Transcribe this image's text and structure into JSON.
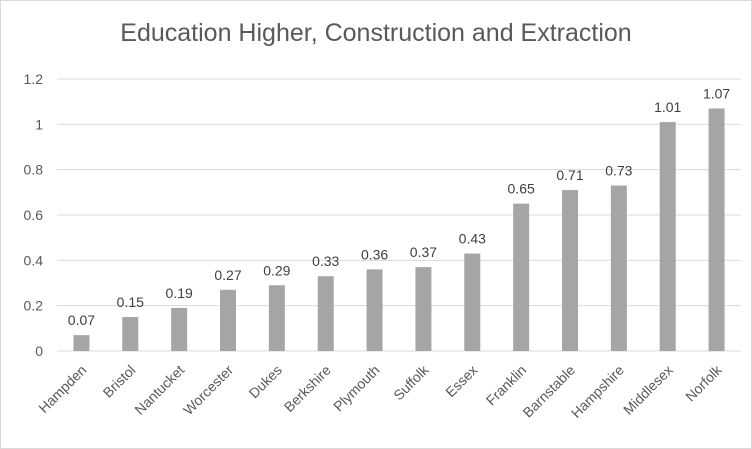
{
  "chart_data": {
    "type": "bar",
    "title": "Education Higher, Construction and Extraction",
    "categories": [
      "Hampden",
      "Bristol",
      "Nantucket",
      "Worcester",
      "Dukes",
      "Berkshire",
      "Plymouth",
      "Suffolk",
      "Essex",
      "Franklin",
      "Barnstable",
      "Hampshire",
      "Middlesex",
      "Norfolk"
    ],
    "values": [
      0.07,
      0.15,
      0.19,
      0.27,
      0.29,
      0.33,
      0.36,
      0.37,
      0.43,
      0.65,
      0.71,
      0.73,
      1.01,
      1.07
    ],
    "data_labels": [
      "0.07",
      "0.15",
      "0.19",
      "0.27",
      "0.29",
      "0.33",
      "0.36",
      "0.37",
      "0.43",
      "0.65",
      "0.71",
      "0.73",
      "1.01",
      "1.07"
    ],
    "y_ticks": [
      "0",
      "0.2",
      "0.4",
      "0.6",
      "0.8",
      "1",
      "1.2"
    ],
    "ylim": [
      0,
      1.2
    ],
    "xlabel": "",
    "ylabel": "",
    "grid": true,
    "legend": "none",
    "colors": {
      "bar": "#a5a5a5",
      "grid": "#d9d9d9",
      "text": "#595959",
      "label": "#404040"
    }
  }
}
